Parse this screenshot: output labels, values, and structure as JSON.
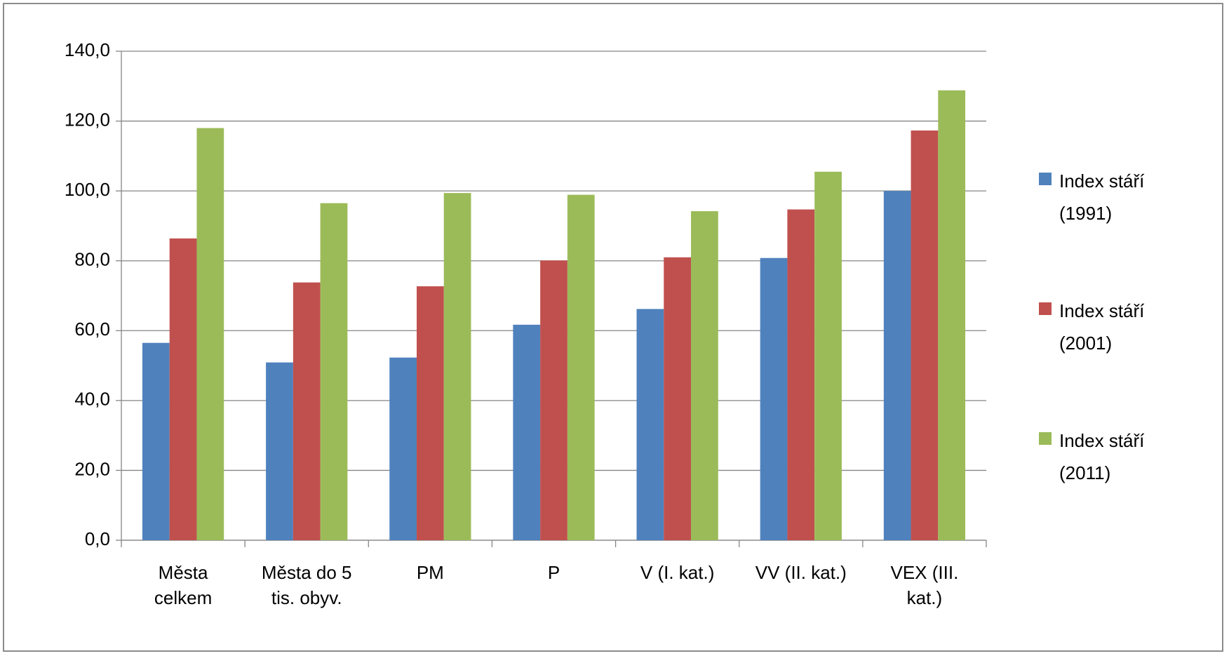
{
  "chart_data": {
    "type": "bar",
    "categories": [
      "Města\ncelkem",
      "Města do 5\ntis. obyv.",
      "PM",
      "P",
      "V (I. kat.)",
      "VV (II. kat.)",
      "VEX (III.\nkat.)"
    ],
    "series": [
      {
        "name": "Index stáří\n(1991)",
        "color": "#4f81bd",
        "values": [
          56.5,
          50.9,
          52.3,
          61.7,
          66.2,
          80.8,
          100.0
        ]
      },
      {
        "name": "Index stáří\n(2001)",
        "color": "#c0504d",
        "values": [
          86.4,
          73.8,
          72.7,
          80.1,
          81.0,
          94.7,
          117.3
        ]
      },
      {
        "name": "Index stáří\n(2011)",
        "color": "#9bbb59",
        "values": [
          118.0,
          96.5,
          99.4,
          98.9,
          94.2,
          105.5,
          128.8
        ]
      }
    ],
    "ylim": [
      0,
      140
    ],
    "yticks": [
      {
        "value": 0,
        "label": "0,0"
      },
      {
        "value": 20,
        "label": "20,0"
      },
      {
        "value": 40,
        "label": "40,0"
      },
      {
        "value": 60,
        "label": "60,0"
      },
      {
        "value": 80,
        "label": "80,0"
      },
      {
        "value": 100,
        "label": "100,0"
      },
      {
        "value": 120,
        "label": "120,0"
      },
      {
        "value": 140,
        "label": "140,0"
      }
    ],
    "grid": true,
    "legend": "right"
  }
}
